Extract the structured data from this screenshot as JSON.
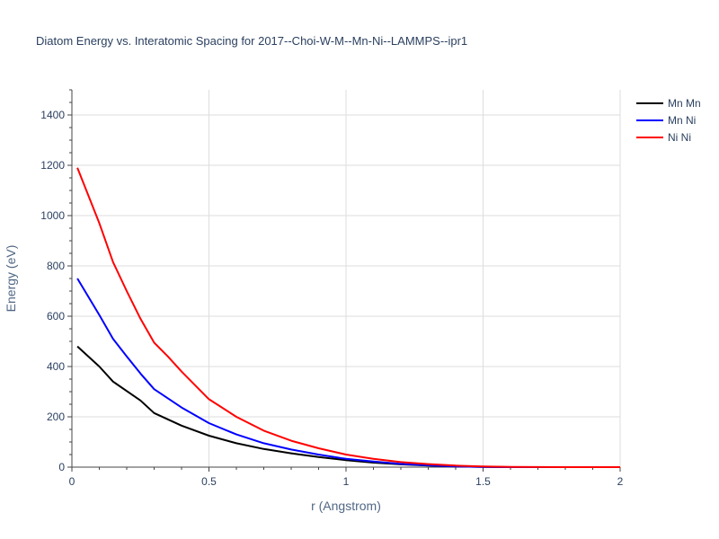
{
  "chart_data": {
    "type": "line",
    "title": "Diatom Energy vs. Interatomic Spacing for 2017--Choi-W-M--Mn-Ni--LAMMPS--ipr1",
    "xlabel": "r (Angstrom)",
    "ylabel": "Energy (eV)",
    "xlim": [
      0,
      2
    ],
    "ylim": [
      0,
      1500
    ],
    "xticks": [
      0,
      0.5,
      1,
      1.5,
      2
    ],
    "xtick_labels": [
      "0",
      "0.5",
      "1",
      "1.5",
      "2"
    ],
    "yticks": [
      0,
      200,
      400,
      600,
      800,
      1000,
      1200,
      1400
    ],
    "ytick_labels": [
      "0",
      "200",
      "400",
      "600",
      "800",
      "1000",
      "1200",
      "1400"
    ],
    "grid": true,
    "legend_position": "top-right",
    "series": [
      {
        "name": "Mn Mn",
        "color": "#000000",
        "x": [
          0.02,
          0.1,
          0.15,
          0.25,
          0.3,
          0.4,
          0.5,
          0.6,
          0.7,
          0.8,
          0.9,
          1.0,
          1.1,
          1.2,
          1.3,
          1.4,
          1.5,
          1.6,
          1.8,
          2.0
        ],
        "y": [
          480,
          400,
          340,
          265,
          215,
          165,
          125,
          95,
          72,
          55,
          40,
          28,
          18,
          11,
          6,
          3,
          1,
          0,
          0,
          0
        ]
      },
      {
        "name": "Mn Ni",
        "color": "#0000ff",
        "x": [
          0.02,
          0.1,
          0.15,
          0.2,
          0.25,
          0.3,
          0.4,
          0.5,
          0.6,
          0.7,
          0.8,
          0.9,
          1.0,
          1.1,
          1.2,
          1.3,
          1.4,
          1.5,
          1.6,
          1.8,
          2.0
        ],
        "y": [
          750,
          605,
          510,
          440,
          372,
          310,
          237,
          175,
          130,
          95,
          70,
          50,
          33,
          22,
          13,
          7,
          3,
          1,
          0,
          0,
          0
        ]
      },
      {
        "name": "Ni Ni",
        "color": "#ff0000",
        "x": [
          0.02,
          0.1,
          0.15,
          0.2,
          0.25,
          0.3,
          0.35,
          0.4,
          0.5,
          0.6,
          0.7,
          0.8,
          0.9,
          1.0,
          1.1,
          1.2,
          1.3,
          1.4,
          1.5,
          1.6,
          1.8,
          2.0
        ],
        "y": [
          1190,
          970,
          815,
          700,
          590,
          495,
          440,
          380,
          270,
          200,
          145,
          105,
          75,
          50,
          33,
          20,
          12,
          6,
          3,
          1,
          0,
          0
        ]
      }
    ]
  }
}
